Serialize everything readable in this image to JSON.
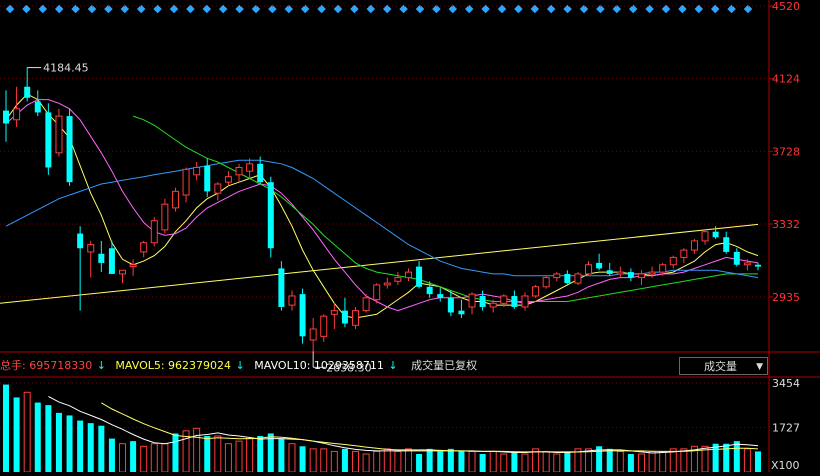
{
  "chart_data": [
    {
      "type": "candlestick",
      "name_field": "",
      "y_ticks": [
        "4520",
        "4124",
        "3728",
        "3332",
        "2935"
      ],
      "ylim": [
        2700,
        4520
      ],
      "annotations": {
        "high_label": "4184.45",
        "low_label": "2638.30"
      },
      "grid": false,
      "up_color": "#ff3c3c",
      "down_color": "#00ffff",
      "candles": [
        [
          3950,
          4060,
          3780,
          3880
        ],
        [
          3900,
          4080,
          3860,
          3960
        ],
        [
          4080,
          4184.45,
          4000,
          4020
        ],
        [
          4000,
          4060,
          3920,
          3940
        ],
        [
          3940,
          3990,
          3600,
          3640
        ],
        [
          3720,
          3960,
          3700,
          3920
        ],
        [
          3920,
          3960,
          3540,
          3560
        ],
        [
          3280,
          3320,
          2860,
          3200
        ],
        [
          3180,
          3240,
          3040,
          3220
        ],
        [
          3170,
          3240,
          3070,
          3120
        ],
        [
          3200,
          3240,
          3060,
          3060
        ],
        [
          3060,
          3080,
          3010,
          3080
        ],
        [
          3100,
          3140,
          3050,
          3110
        ],
        [
          3180,
          3240,
          3150,
          3230
        ],
        [
          3230,
          3370,
          3210,
          3350
        ],
        [
          3300,
          3470,
          3280,
          3440
        ],
        [
          3420,
          3530,
          3400,
          3510
        ],
        [
          3490,
          3640,
          3450,
          3630
        ],
        [
          3600,
          3670,
          3570,
          3640
        ],
        [
          3650,
          3690,
          3480,
          3510
        ],
        [
          3500,
          3560,
          3460,
          3550
        ],
        [
          3560,
          3620,
          3540,
          3590
        ],
        [
          3600,
          3660,
          3560,
          3640
        ],
        [
          3620,
          3690,
          3580,
          3660
        ],
        [
          3660,
          3700,
          3550,
          3560
        ],
        [
          3560,
          3590,
          3150,
          3200
        ],
        [
          3090,
          3130,
          2860,
          2880
        ],
        [
          2890,
          2970,
          2860,
          2940
        ],
        [
          2950,
          2980,
          2680,
          2720
        ],
        [
          2700,
          2820,
          2638.3,
          2760
        ],
        [
          2720,
          2840,
          2690,
          2830
        ],
        [
          2840,
          2900,
          2760,
          2860
        ],
        [
          2860,
          2930,
          2770,
          2790
        ],
        [
          2780,
          2880,
          2760,
          2860
        ],
        [
          2860,
          2950,
          2850,
          2930
        ],
        [
          2920,
          3010,
          2900,
          3000
        ],
        [
          3000,
          3040,
          2980,
          3010
        ],
        [
          3020,
          3070,
          3000,
          3040
        ],
        [
          3040,
          3090,
          3020,
          3070
        ],
        [
          3100,
          3130,
          2980,
          2990
        ],
        [
          2990,
          3020,
          2930,
          2950
        ],
        [
          2950,
          2990,
          2910,
          2930
        ],
        [
          2930,
          2970,
          2830,
          2850
        ],
        [
          2860,
          2920,
          2820,
          2840
        ],
        [
          2880,
          2960,
          2840,
          2950
        ],
        [
          2940,
          2970,
          2860,
          2880
        ],
        [
          2880,
          2920,
          2850,
          2900
        ],
        [
          2900,
          2950,
          2880,
          2940
        ],
        [
          2940,
          2970,
          2870,
          2880
        ],
        [
          2880,
          2960,
          2860,
          2940
        ],
        [
          2940,
          3000,
          2930,
          2990
        ],
        [
          2990,
          3050,
          2980,
          3040
        ],
        [
          3040,
          3070,
          3020,
          3060
        ],
        [
          3060,
          3080,
          3000,
          3010
        ],
        [
          3010,
          3070,
          3000,
          3060
        ],
        [
          3060,
          3130,
          3050,
          3110
        ],
        [
          3120,
          3170,
          3080,
          3090
        ],
        [
          3080,
          3120,
          3050,
          3060
        ],
        [
          3060,
          3100,
          3040,
          3070
        ],
        [
          3070,
          3090,
          3020,
          3040
        ],
        [
          3040,
          3080,
          3000,
          3060
        ],
        [
          3060,
          3100,
          3040,
          3070
        ],
        [
          3070,
          3120,
          3050,
          3110
        ],
        [
          3110,
          3160,
          3090,
          3150
        ],
        [
          3150,
          3200,
          3120,
          3190
        ],
        [
          3190,
          3250,
          3170,
          3240
        ],
        [
          3240,
          3300,
          3220,
          3290
        ],
        [
          3290,
          3320,
          3250,
          3260
        ],
        [
          3260,
          3290,
          3170,
          3180
        ],
        [
          3180,
          3200,
          3100,
          3110
        ],
        [
          3110,
          3140,
          3080,
          3120
        ],
        [
          3110,
          3120,
          3080,
          3100
        ]
      ],
      "ma_lines": [
        {
          "color": "#ffff66",
          "values": [
            3900,
            3980,
            4040,
            4010,
            3930,
            3870,
            3800,
            3650,
            3500,
            3380,
            3230,
            3140,
            3110,
            3130,
            3160,
            3210,
            3290,
            3350,
            3420,
            3470,
            3500,
            3540,
            3560,
            3580,
            3600,
            3530,
            3430,
            3320,
            3190,
            3080,
            2990,
            2900,
            2830,
            2820,
            2830,
            2840,
            2880,
            2920,
            2960,
            3010,
            3000,
            2990,
            2960,
            2930,
            2910,
            2910,
            2890,
            2890,
            2890,
            2890,
            2910,
            2940,
            2970,
            3000,
            3030,
            3060,
            3070,
            3070,
            3070,
            3060,
            3060,
            3050,
            3060,
            3070,
            3100,
            3130,
            3180,
            3220,
            3230,
            3210,
            3180,
            3160
          ]
        },
        {
          "color": "#ff66ff",
          "values": [
            3880,
            3930,
            3980,
            4010,
            4010,
            3990,
            3960,
            3900,
            3810,
            3720,
            3620,
            3510,
            3420,
            3340,
            3290,
            3270,
            3280,
            3310,
            3370,
            3420,
            3450,
            3480,
            3510,
            3530,
            3550,
            3540,
            3500,
            3440,
            3370,
            3300,
            3220,
            3140,
            3070,
            3000,
            2940,
            2910,
            2880,
            2860,
            2880,
            2900,
            2920,
            2930,
            2930,
            2930,
            2940,
            2950,
            2940,
            2930,
            2910,
            2900,
            2910,
            2920,
            2930,
            2940,
            2960,
            2990,
            3010,
            3030,
            3040,
            3040,
            3050,
            3050,
            3060,
            3060,
            3070,
            3090,
            3110,
            3130,
            3150,
            3140,
            3130,
            3120
          ]
        },
        {
          "color": "#22dd22",
          "values": [
            null,
            null,
            null,
            null,
            null,
            null,
            null,
            null,
            null,
            null,
            null,
            null,
            3920,
            3900,
            3870,
            3830,
            3790,
            3750,
            3720,
            3690,
            3670,
            3640,
            3610,
            3580,
            3550,
            3520,
            3480,
            3430,
            3380,
            3330,
            3270,
            3220,
            3170,
            3120,
            3090,
            3070,
            3060,
            3050,
            3040,
            3030,
            3010,
            2990,
            2970,
            2950,
            2930,
            2920,
            2910,
            2910,
            2910,
            2910,
            2910,
            2910,
            2910,
            2910,
            2920,
            2930,
            2940,
            2950,
            2960,
            2970,
            2980,
            2990,
            3000,
            3010,
            3020,
            3030,
            3040,
            3050,
            3060,
            3060,
            3060,
            3060
          ]
        },
        {
          "color": "#3399ff",
          "values": [
            3320,
            3350,
            3380,
            3410,
            3440,
            3470,
            3490,
            3510,
            3530,
            3550,
            3560,
            3570,
            3580,
            3590,
            3600,
            3610,
            3620,
            3630,
            3640,
            3650,
            3660,
            3670,
            3680,
            3680,
            3680,
            3670,
            3660,
            3640,
            3610,
            3580,
            3540,
            3500,
            3460,
            3420,
            3380,
            3340,
            3300,
            3260,
            3220,
            3190,
            3160,
            3130,
            3110,
            3090,
            3080,
            3070,
            3060,
            3060,
            3050,
            3050,
            3050,
            3050,
            3050,
            3050,
            3050,
            3050,
            3050,
            3050,
            3060,
            3060,
            3060,
            3070,
            3070,
            3080,
            3080,
            3080,
            3080,
            3080,
            3070,
            3060,
            3050,
            3040
          ]
        }
      ],
      "trend_lines": [
        {
          "color": "#ffff66",
          "points": [
            [
              0,
              2900
            ],
            [
              71,
              3330
            ]
          ]
        }
      ]
    },
    {
      "type": "bar",
      "ylim": [
        0,
        3500
      ],
      "y_ticks": [
        "3454",
        "1727"
      ],
      "y_unit_label": "X100",
      "bars": [
        3400,
        2900,
        3100,
        2700,
        2600,
        2300,
        2200,
        2000,
        1900,
        1800,
        1300,
        1100,
        1200,
        1000,
        1100,
        1100,
        1500,
        1600,
        1700,
        1400,
        1400,
        1100,
        1200,
        1300,
        1400,
        1500,
        1300,
        1100,
        1000,
        900,
        900,
        800,
        900,
        800,
        700,
        800,
        900,
        800,
        900,
        700,
        900,
        800,
        900,
        800,
        800,
        700,
        800,
        700,
        800,
        700,
        900,
        800,
        700,
        800,
        900,
        900,
        1000,
        900,
        800,
        700,
        700,
        800,
        800,
        900,
        900,
        1000,
        1000,
        1100,
        1100,
        1200,
        900,
        800
      ],
      "up_down": [
        "d",
        "d",
        "u",
        "d",
        "d",
        "d",
        "d",
        "d",
        "d",
        "d",
        "d",
        "u",
        "d",
        "u",
        "u",
        "u",
        "d",
        "u",
        "u",
        "d",
        "u",
        "u",
        "u",
        "u",
        "d",
        "d",
        "d",
        "u",
        "d",
        "u",
        "u",
        "u",
        "d",
        "u",
        "u",
        "u",
        "u",
        "u",
        "u",
        "d",
        "d",
        "d",
        "d",
        "d",
        "u",
        "d",
        "u",
        "u",
        "d",
        "u",
        "u",
        "u",
        "u",
        "d",
        "u",
        "u",
        "d",
        "d",
        "u",
        "d",
        "u",
        "u",
        "u",
        "u",
        "u",
        "u",
        "u",
        "d",
        "d",
        "d",
        "u",
        "d"
      ],
      "ma_lines": [
        {
          "color": "#ffffff",
          "values": [
            null,
            null,
            null,
            null,
            2940,
            2720,
            2580,
            2360,
            2200,
            2040,
            1840,
            1660,
            1460,
            1280,
            1140,
            1100,
            1180,
            1300,
            1420,
            1460,
            1520,
            1440,
            1400,
            1340,
            1280,
            1300,
            1300,
            1280,
            1260,
            1200,
            1120,
            1020,
            940,
            880,
            840,
            820,
            820,
            820,
            820,
            820,
            820,
            820,
            820,
            820,
            820,
            800,
            800,
            780,
            760,
            760,
            780,
            780,
            760,
            760,
            780,
            820,
            860,
            860,
            860,
            820,
            780,
            740,
            760,
            780,
            820,
            860,
            920,
            960,
            1020,
            1080,
            1060,
            1020
          ]
        },
        {
          "color": "#ffff66",
          "values": [
            null,
            null,
            null,
            null,
            null,
            null,
            null,
            null,
            null,
            2690,
            2450,
            2260,
            2060,
            1880,
            1720,
            1570,
            1420,
            1380,
            1350,
            1300,
            1330,
            1310,
            1290,
            1300,
            1310,
            1370,
            1350,
            1310,
            1260,
            1200,
            1160,
            1110,
            1070,
            1020,
            970,
            920,
            880,
            860,
            860,
            860,
            860,
            840,
            830,
            820,
            810,
            800,
            810,
            800,
            790,
            780,
            790,
            790,
            780,
            780,
            780,
            790,
            810,
            820,
            830,
            820,
            820,
            810,
            800,
            800,
            800,
            830,
            860,
            880,
            900,
            920,
            920,
            900
          ]
        }
      ]
    }
  ],
  "vol_header": {
    "total_label": "总手: 695718330",
    "ma5_label": "MAVOL5: 962379024",
    "ma10_label": "MAVOL10: 1029358711",
    "note": "成交量已复权",
    "selector": "成交量",
    "total_color": "#ff4444",
    "ma5_color": "#ffff44",
    "ma10_color": "#ffffff",
    "arrow_color": "#00ffff"
  },
  "colors": {
    "axis": "#b00000",
    "grid_dot": "#6a0000",
    "axis_text_price": "#ff3333",
    "axis_text_vol": "#dddddd",
    "diamond": "#2aa8ff"
  }
}
